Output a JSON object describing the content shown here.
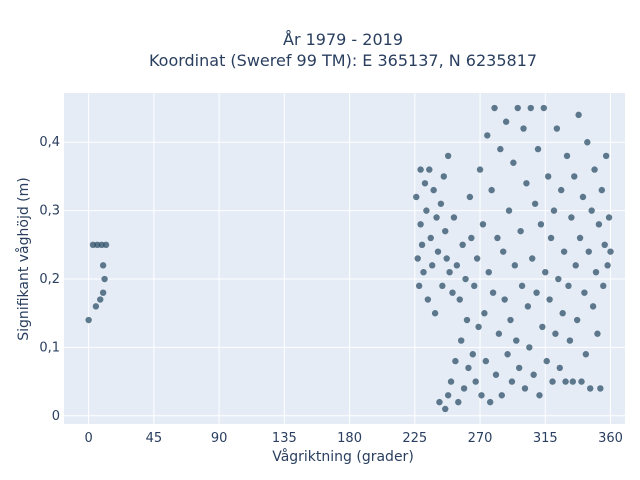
{
  "chart_data": {
    "type": "scatter",
    "title_line1": "År 1979 - 2019",
    "title_line2": "Koordinat (Sweref 99 TM): E 365137, N 6235817",
    "xlabel": "Vågriktning (grader)",
    "ylabel": "Signifikant våghöjd (m)",
    "xlim": [
      -17,
      370
    ],
    "ylim": [
      -0.012,
      0.472
    ],
    "x_ticks": [
      0,
      45,
      90,
      135,
      180,
      225,
      270,
      315,
      360
    ],
    "x_tick_labels": [
      "0",
      "45",
      "90",
      "135",
      "180",
      "225",
      "270",
      "315",
      "360"
    ],
    "y_ticks": [
      0,
      0.1,
      0.2,
      0.3,
      0.4
    ],
    "y_tick_labels": [
      "0",
      "0,1",
      "0,2",
      "0,3",
      "0,4"
    ],
    "grid": true,
    "marker_color": "#2e5068",
    "plot_background": "#e5ecf6",
    "series": [
      {
        "values": [
          [
            0,
            0.14
          ],
          [
            3,
            0.25
          ],
          [
            5,
            0.16
          ],
          [
            6,
            0.25
          ],
          [
            8,
            0.17
          ],
          [
            9,
            0.25
          ],
          [
            10,
            0.18
          ],
          [
            10,
            0.22
          ],
          [
            11,
            0.2
          ],
          [
            12,
            0.25
          ],
          [
            226,
            0.32
          ],
          [
            227,
            0.23
          ],
          [
            228,
            0.19
          ],
          [
            229,
            0.36
          ],
          [
            229,
            0.28
          ],
          [
            230,
            0.25
          ],
          [
            231,
            0.21
          ],
          [
            232,
            0.34
          ],
          [
            233,
            0.3
          ],
          [
            234,
            0.17
          ],
          [
            235,
            0.36
          ],
          [
            236,
            0.26
          ],
          [
            237,
            0.22
          ],
          [
            238,
            0.33
          ],
          [
            239,
            0.15
          ],
          [
            240,
            0.29
          ],
          [
            241,
            0.24
          ],
          [
            242,
            0.02
          ],
          [
            243,
            0.31
          ],
          [
            244,
            0.19
          ],
          [
            245,
            0.35
          ],
          [
            246,
            0.27
          ],
          [
            246,
            0.01
          ],
          [
            247,
            0.23
          ],
          [
            248,
            0.38
          ],
          [
            248,
            0.03
          ],
          [
            249,
            0.21
          ],
          [
            250,
            0.05
          ],
          [
            251,
            0.18
          ],
          [
            252,
            0.29
          ],
          [
            253,
            0.08
          ],
          [
            254,
            0.22
          ],
          [
            255,
            0.02
          ],
          [
            256,
            0.17
          ],
          [
            257,
            0.11
          ],
          [
            258,
            0.25
          ],
          [
            259,
            0.04
          ],
          [
            260,
            0.2
          ],
          [
            261,
            0.14
          ],
          [
            262,
            0.07
          ],
          [
            263,
            0.32
          ],
          [
            264,
            0.26
          ],
          [
            265,
            0.09
          ],
          [
            266,
            0.19
          ],
          [
            267,
            0.05
          ],
          [
            268,
            0.23
          ],
          [
            269,
            0.13
          ],
          [
            270,
            0.36
          ],
          [
            271,
            0.03
          ],
          [
            272,
            0.28
          ],
          [
            273,
            0.15
          ],
          [
            274,
            0.08
          ],
          [
            275,
            0.41
          ],
          [
            276,
            0.21
          ],
          [
            277,
            0.02
          ],
          [
            278,
            0.33
          ],
          [
            279,
            0.18
          ],
          [
            280,
            0.45
          ],
          [
            281,
            0.06
          ],
          [
            282,
            0.26
          ],
          [
            283,
            0.12
          ],
          [
            284,
            0.39
          ],
          [
            285,
            0.03
          ],
          [
            286,
            0.24
          ],
          [
            287,
            0.17
          ],
          [
            288,
            0.43
          ],
          [
            289,
            0.09
          ],
          [
            290,
            0.3
          ],
          [
            291,
            0.14
          ],
          [
            292,
            0.05
          ],
          [
            293,
            0.37
          ],
          [
            294,
            0.22
          ],
          [
            295,
            0.11
          ],
          [
            296,
            0.45
          ],
          [
            297,
            0.07
          ],
          [
            298,
            0.27
          ],
          [
            299,
            0.19
          ],
          [
            300,
            0.42
          ],
          [
            301,
            0.04
          ],
          [
            302,
            0.34
          ],
          [
            303,
            0.16
          ],
          [
            304,
            0.1
          ],
          [
            305,
            0.45
          ],
          [
            306,
            0.23
          ],
          [
            307,
            0.06
          ],
          [
            308,
            0.31
          ],
          [
            309,
            0.18
          ],
          [
            310,
            0.39
          ],
          [
            311,
            0.03
          ],
          [
            312,
            0.28
          ],
          [
            313,
            0.13
          ],
          [
            314,
            0.45
          ],
          [
            315,
            0.21
          ],
          [
            316,
            0.08
          ],
          [
            317,
            0.35
          ],
          [
            318,
            0.17
          ],
          [
            319,
            0.26
          ],
          [
            320,
            0.05
          ],
          [
            321,
            0.3
          ],
          [
            322,
            0.12
          ],
          [
            323,
            0.42
          ],
          [
            324,
            0.2
          ],
          [
            325,
            0.07
          ],
          [
            326,
            0.33
          ],
          [
            327,
            0.15
          ],
          [
            328,
            0.24
          ],
          [
            329,
            0.05
          ],
          [
            330,
            0.38
          ],
          [
            331,
            0.19
          ],
          [
            332,
            0.11
          ],
          [
            333,
            0.29
          ],
          [
            334,
            0.05
          ],
          [
            335,
            0.35
          ],
          [
            336,
            0.22
          ],
          [
            337,
            0.14
          ],
          [
            338,
            0.44
          ],
          [
            339,
            0.26
          ],
          [
            340,
            0.05
          ],
          [
            341,
            0.32
          ],
          [
            342,
            0.18
          ],
          [
            343,
            0.09
          ],
          [
            344,
            0.4
          ],
          [
            345,
            0.24
          ],
          [
            346,
            0.04
          ],
          [
            347,
            0.3
          ],
          [
            348,
            0.16
          ],
          [
            349,
            0.36
          ],
          [
            350,
            0.21
          ],
          [
            351,
            0.12
          ],
          [
            352,
            0.28
          ],
          [
            353,
            0.04
          ],
          [
            354,
            0.33
          ],
          [
            355,
            0.19
          ],
          [
            356,
            0.25
          ],
          [
            357,
            0.38
          ],
          [
            358,
            0.22
          ],
          [
            359,
            0.29
          ],
          [
            360,
            0.24
          ]
        ]
      }
    ]
  }
}
